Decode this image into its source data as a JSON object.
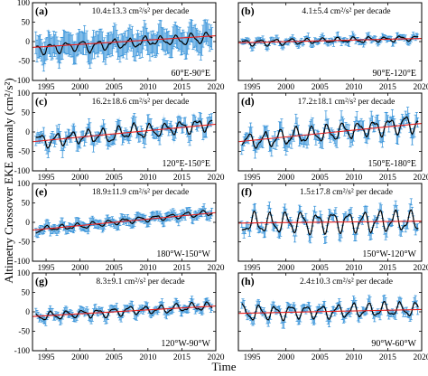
{
  "ylabel": "Altimetry Crossover EKE anomaly (cm²/s²)",
  "xlabel": "Time",
  "chart_data": [
    {
      "type": "line",
      "panel": "(a)",
      "region": "60°E-90°E",
      "trend_text": "10.4±13.3 cm²/s² per decade",
      "ylim": [
        -100,
        100
      ],
      "yticks": [
        -100,
        -50,
        0,
        50,
        100
      ],
      "xlim": [
        1993,
        2020
      ],
      "xticks": [
        1995,
        2000,
        2005,
        2010,
        2015,
        2020
      ],
      "trend": {
        "start": -15,
        "end": 15
      },
      "err": 28,
      "amp": 22,
      "noise": 10,
      "base": -5,
      "seed": 1,
      "col": 0,
      "row": 0
    },
    {
      "type": "line",
      "panel": "(b)",
      "region": "90°E-120°E",
      "trend_text": "4.1±5.4 cm²/s² per decade",
      "ylim": [
        -100,
        100
      ],
      "yticks": [
        -100,
        -50,
        0,
        50,
        100
      ],
      "xlim": [
        1993,
        2020
      ],
      "xticks": [
        1995,
        2000,
        2005,
        2010,
        2015,
        2020
      ],
      "trend": {
        "start": -3,
        "end": 8
      },
      "err": 6,
      "amp": 12,
      "noise": 5,
      "base": 0,
      "seed": 2,
      "col": 1,
      "row": 0
    },
    {
      "type": "line",
      "panel": "(c)",
      "region": "120°E-150°E",
      "trend_text": "16.2±18.6 cm²/s² per decade",
      "ylim": [
        -100,
        100
      ],
      "yticks": [
        -100,
        -50,
        0,
        50,
        100
      ],
      "xlim": [
        1993,
        2020
      ],
      "xticks": [
        1995,
        2000,
        2005,
        2010,
        2015,
        2020
      ],
      "trend": {
        "start": -25,
        "end": 20
      },
      "err": 12,
      "amp": 30,
      "noise": 10,
      "base": 0,
      "seed": 3,
      "col": 0,
      "row": 1
    },
    {
      "type": "line",
      "panel": "(d)",
      "region": "150°E-180°E",
      "trend_text": "17.2±18.1 cm²/s² per decade",
      "ylim": [
        -100,
        100
      ],
      "yticks": [
        -100,
        -50,
        0,
        50,
        100
      ],
      "xlim": [
        1993,
        2020
      ],
      "xticks": [
        1995,
        2000,
        2005,
        2010,
        2015,
        2020
      ],
      "trend": {
        "start": -25,
        "end": 22
      },
      "err": 12,
      "amp": 35,
      "noise": 12,
      "base": 0,
      "seed": 4,
      "col": 1,
      "row": 1
    },
    {
      "type": "line",
      "panel": "(e)",
      "region": "180°W-150°W",
      "trend_text": "18.9±11.9 cm²/s² per decade",
      "ylim": [
        -100,
        100
      ],
      "yticks": [
        -100,
        -50,
        0,
        50,
        100
      ],
      "xlim": [
        1993,
        2020
      ],
      "xticks": [
        1995,
        2000,
        2005,
        2010,
        2015,
        2020
      ],
      "trend": {
        "start": -20,
        "end": 25
      },
      "err": 10,
      "amp": 12,
      "noise": 5,
      "base": 0,
      "seed": 5,
      "col": 0,
      "row": 2
    },
    {
      "type": "line",
      "panel": "(f)",
      "region": "150°W-120°W",
      "trend_text": "1.5±17.8 cm²/s² per decade",
      "ylim": [
        -100,
        100
      ],
      "yticks": [
        -100,
        -50,
        0,
        50,
        100
      ],
      "xlim": [
        1993,
        2020
      ],
      "xticks": [
        1995,
        2000,
        2005,
        2010,
        2015,
        2020
      ],
      "trend": {
        "start": -2,
        "end": 3
      },
      "err": 8,
      "amp": 45,
      "noise": 6,
      "base": 0,
      "seed": 6,
      "col": 1,
      "row": 2
    },
    {
      "type": "line",
      "panel": "(g)",
      "region": "120°W-90°W",
      "trend_text": "8.3±9.1 cm²/s² per decade",
      "ylim": [
        -100,
        100
      ],
      "yticks": [
        -100,
        -50,
        0,
        50,
        100
      ],
      "xlim": [
        1993,
        2020
      ],
      "xticks": [
        1995,
        2000,
        2005,
        2010,
        2015,
        2020
      ],
      "trend": {
        "start": -12,
        "end": 15
      },
      "err": 8,
      "amp": 18,
      "noise": 5,
      "base": 0,
      "seed": 7,
      "col": 0,
      "row": 3
    },
    {
      "type": "line",
      "panel": "(h)",
      "region": "90°W-60°W",
      "trend_text": "2.4±10.3 cm²/s² per decade",
      "ylim": [
        -100,
        100
      ],
      "yticks": [
        -100,
        -50,
        0,
        50,
        100
      ],
      "xlim": [
        1993,
        2020
      ],
      "xticks": [
        1995,
        2000,
        2005,
        2010,
        2015,
        2020
      ],
      "trend": {
        "start": -4,
        "end": 6
      },
      "err": 8,
      "amp": 30,
      "noise": 6,
      "base": 0,
      "seed": 8,
      "col": 1,
      "row": 3
    }
  ],
  "colors": {
    "band": "#8ec3ea",
    "errbar": "#2f8fd8",
    "series": "#000000",
    "trend": "#e8201f"
  }
}
